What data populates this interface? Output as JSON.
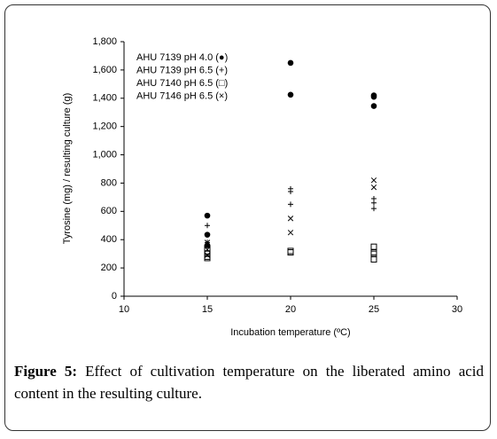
{
  "chart_data": {
    "type": "scatter",
    "xlabel": "Incubation temperature (ºC)",
    "ylabel": "Tyrosine (mg) / resulting culture (g)",
    "xlim": [
      10,
      30
    ],
    "xticks": [
      10,
      15,
      20,
      25,
      30
    ],
    "ylim": [
      0,
      1800
    ],
    "yticks": [
      0,
      200,
      400,
      600,
      800,
      {
        "value": 1000,
        "label": "1,000"
      },
      {
        "value": 1200,
        "label": "1,200"
      },
      {
        "value": 1400,
        "label": "1,400"
      },
      {
        "value": 1600,
        "label": "1,600"
      },
      {
        "value": 1800,
        "label": "1,800"
      }
    ],
    "grid": false,
    "legend": "upper left",
    "series": [
      {
        "name": "AHU 7139 pH 4.0 (●)",
        "color": "#000000",
        "marker": "circle",
        "x": [
          15,
          15,
          15,
          20,
          20,
          25,
          25,
          25
        ],
        "values": [
          570,
          435,
          360,
          1650,
          1425,
          1420,
          1410,
          1345
        ]
      },
      {
        "name": "AHU 7139 pH 6.5 (+)",
        "color": "#000000",
        "marker": "plus",
        "x": [
          15,
          15,
          20,
          20,
          20,
          25,
          25,
          25
        ],
        "values": [
          500,
          380,
          760,
          740,
          650,
          690,
          660,
          620
        ]
      },
      {
        "name": "AHU 7140 pH 6.5 (□)",
        "color": "#000000",
        "marker": "square",
        "x": [
          15,
          15,
          15,
          15,
          20,
          20,
          25,
          25,
          25,
          25
        ],
        "values": [
          340,
          300,
          280,
          270,
          320,
          310,
          350,
          310,
          300,
          260
        ]
      },
      {
        "name": "AHU 7146 pH 6.5 (×)",
        "color": "#000000",
        "marker": "x",
        "x": [
          15,
          15,
          15,
          20,
          20,
          25,
          25
        ],
        "values": [
          380,
          330,
          290,
          550,
          450,
          820,
          770
        ]
      }
    ]
  },
  "caption": {
    "label": "Figure 5:",
    "text": "Effect of cultivation temperature on the liberated amino acid content in the resulting culture."
  }
}
